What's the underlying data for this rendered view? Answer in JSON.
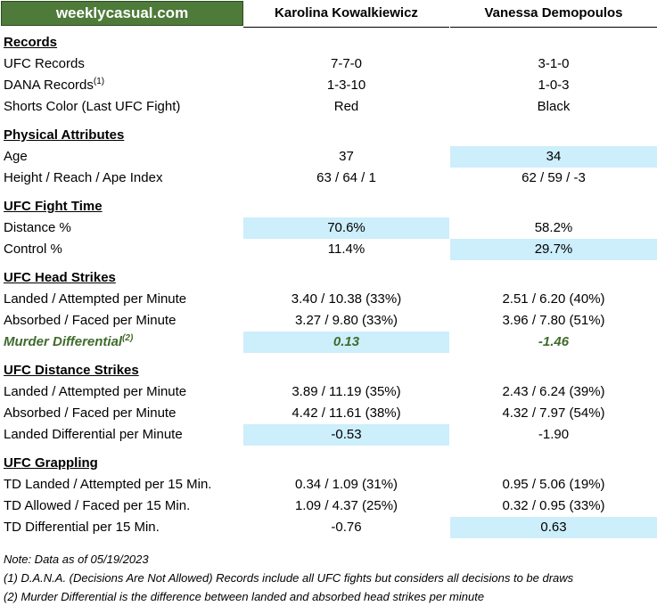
{
  "brand": "weeklycasual.com",
  "fighters": {
    "a": "Karolina Kowalkiewicz",
    "b": "Vanessa Demopoulos"
  },
  "sections": [
    {
      "title": "Records",
      "rows": [
        {
          "label": "UFC Records",
          "a": "7-7-0",
          "b": "3-1-0"
        },
        {
          "label": "DANA Records",
          "sup": "(1)",
          "a": "1-3-10",
          "b": "1-0-3"
        },
        {
          "label": "Shorts Color (Last UFC Fight)",
          "a": "Red",
          "b": "Black"
        }
      ]
    },
    {
      "title": "Physical Attributes",
      "rows": [
        {
          "label": "Age",
          "a": "37",
          "b": "34",
          "hl": "b"
        },
        {
          "label": "Height / Reach / Ape Index",
          "a": "63 / 64 / 1",
          "b": "62 / 59 / -3"
        }
      ]
    },
    {
      "title": "UFC Fight Time",
      "rows": [
        {
          "label": "Distance %",
          "a": "70.6%",
          "b": "58.2%",
          "hl": "a"
        },
        {
          "label": "Control %",
          "a": "11.4%",
          "b": "29.7%",
          "hl": "b"
        }
      ]
    },
    {
      "title": "UFC Head Strikes",
      "rows": [
        {
          "label": "Landed / Attempted per Minute",
          "a": "3.40 / 10.38 (33%)",
          "b": "2.51 / 6.20 (40%)"
        },
        {
          "label": "Absorbed / Faced per Minute",
          "a": "3.27 / 9.80 (33%)",
          "b": "3.96 / 7.80 (51%)"
        },
        {
          "label": "Murder Differential",
          "sup": "(2)",
          "a": "0.13",
          "b": "-1.46",
          "hl": "a",
          "style": "murder"
        }
      ]
    },
    {
      "title": "UFC Distance Strikes",
      "rows": [
        {
          "label": "Landed / Attempted per Minute",
          "a": "3.89 / 11.19 (35%)",
          "b": "2.43 / 6.24 (39%)"
        },
        {
          "label": "Absorbed / Faced per Minute",
          "a": "4.42 / 11.61 (38%)",
          "b": "4.32 / 7.97 (54%)"
        },
        {
          "label": "Landed Differential per Minute",
          "a": "-0.53",
          "b": "-1.90",
          "hl": "a"
        }
      ]
    },
    {
      "title": "UFC Grappling",
      "rows": [
        {
          "label": "TD Landed / Attempted per 15 Min.",
          "a": "0.34 / 1.09 (31%)",
          "b": "0.95 / 5.06 (19%)"
        },
        {
          "label": "TD Allowed / Faced per 15 Min.",
          "a": "1.09 / 4.37 (25%)",
          "b": "0.32 / 0.95 (33%)"
        },
        {
          "label": "TD Differential per 15 Min.",
          "a": "-0.76",
          "b": "0.63",
          "hl": "b"
        }
      ]
    }
  ],
  "notes": [
    "Note: Data as of 05/19/2023",
    "(1) D.A.N.A. (Decisions Are Not Allowed) Records include all UFC fights but considers all decisions to be draws",
    "(2) Murder Differential is the difference between landed and absorbed head strikes per minute"
  ],
  "colors": {
    "brand_bg": "#4e7a3a",
    "highlight": "#cdeefb",
    "murder_text": "#3f6b2c"
  }
}
